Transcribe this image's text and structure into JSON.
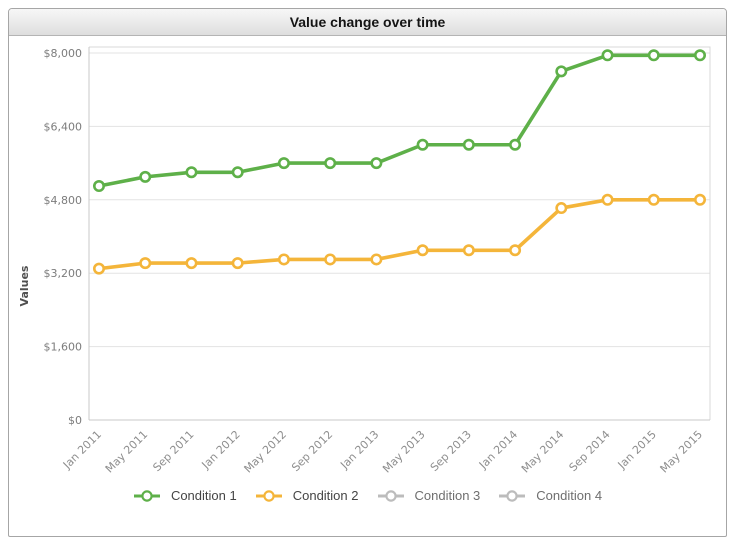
{
  "panel": {
    "title": "Value change over time"
  },
  "chart_data": {
    "type": "line",
    "title": "Value change over time",
    "xlabel": "",
    "ylabel": "Values",
    "x_categories": [
      "Jan 2011",
      "May 2011",
      "Sep 2011",
      "Jan 2012",
      "May 2012",
      "Sep 2012",
      "Jan 2013",
      "May 2013",
      "Sep 2013",
      "Jan 2014",
      "May 2014",
      "Sep 2014",
      "Jan 2015",
      "May 2015"
    ],
    "ylim": [
      0,
      8000
    ],
    "y_ticks": [
      0,
      1600,
      3200,
      4800,
      6400,
      8000
    ],
    "y_tick_labels": [
      "$0",
      "$1,600",
      "$3,200",
      "$4,800",
      "$6,400",
      "$8,000"
    ],
    "currency_prefix": "$",
    "grid": true,
    "legend_position": "bottom",
    "series": [
      {
        "name": "Condition 1",
        "color": "#5eb049",
        "visible": true,
        "values": [
          5100,
          5300,
          5400,
          5400,
          5600,
          5600,
          5600,
          6000,
          6000,
          6000,
          7600,
          7950,
          7950,
          7950
        ]
      },
      {
        "name": "Condition 2",
        "color": "#f4b53a",
        "visible": true,
        "values": [
          3300,
          3420,
          3420,
          3420,
          3500,
          3500,
          3500,
          3700,
          3700,
          3700,
          4620,
          4800,
          4800,
          4800
        ]
      },
      {
        "name": "Condition 3",
        "color": "#bcbcbc",
        "visible": false,
        "values": []
      },
      {
        "name": "Condition 4",
        "color": "#bcbcbc",
        "visible": false,
        "values": []
      }
    ],
    "colors": {
      "gridline": "#e3e3e3",
      "axis": "#c9c9c9",
      "plot_border": "#d8d8d8"
    }
  }
}
